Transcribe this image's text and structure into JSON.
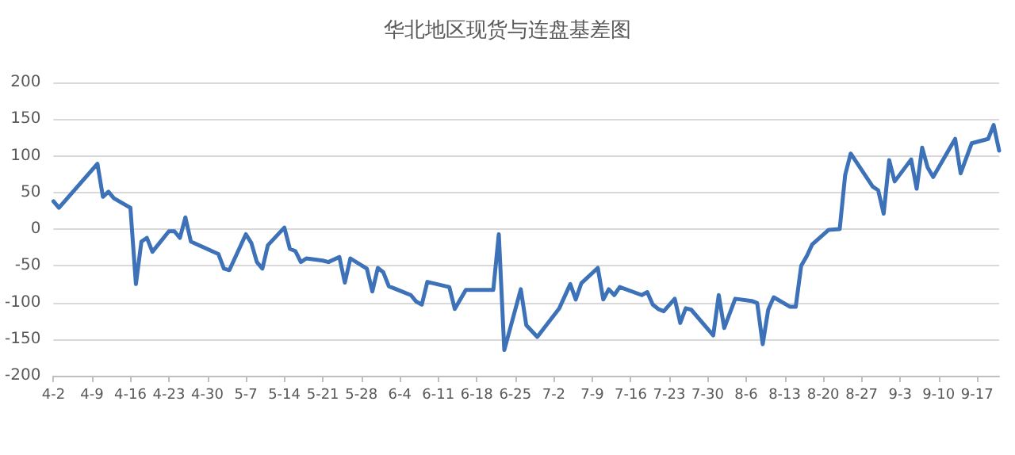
{
  "chart_data": {
    "type": "line",
    "title": "华北地区现货与连盘基差图",
    "x": [
      "--04-02",
      "--04-03",
      "--04-10",
      "--04-11",
      "--04-12",
      "--04-13",
      "--04-16",
      "--04-17",
      "--04-18",
      "--04-19",
      "--04-20",
      "--04-23",
      "--04-24",
      "--04-25",
      "--04-26",
      "--04-27",
      "--05-02",
      "--05-03",
      "--05-04",
      "--05-07",
      "--05-08",
      "--05-09",
      "--05-10",
      "--05-11",
      "--05-14",
      "--05-15",
      "--05-16",
      "--05-17",
      "--05-18",
      "--05-21",
      "--05-22",
      "--05-24",
      "--05-25",
      "--05-26",
      "--05-29",
      "--05-30",
      "--05-31",
      "--06-01",
      "--06-02",
      "--06-06",
      "--06-07",
      "--06-08",
      "--06-09",
      "--06-13",
      "--06-14",
      "--06-16",
      "--06-21",
      "--06-22",
      "--06-23",
      "--06-26",
      "--06-27",
      "--06-29",
      "--07-03",
      "--07-05",
      "--07-06",
      "--07-07",
      "--07-10",
      "--07-11",
      "--07-12",
      "--07-13",
      "--07-14",
      "--07-18",
      "--07-19",
      "--07-20",
      "--07-21",
      "--07-22",
      "--07-24",
      "--07-25",
      "--07-26",
      "--07-27",
      "--07-31",
      "--08-01",
      "--08-02",
      "--08-04",
      "--08-07",
      "--08-08",
      "--08-09",
      "--08-10",
      "--08-11",
      "--08-14",
      "--08-15",
      "--08-16",
      "--08-17",
      "--08-18",
      "--08-21",
      "--08-23",
      "--08-24",
      "--08-25",
      "--08-29",
      "--08-30",
      "--08-31",
      "--09-01",
      "--09-02",
      "--09-05",
      "--09-06",
      "--09-07",
      "--09-08",
      "--09-09",
      "--09-13",
      "--09-14",
      "--09-16",
      "--09-19",
      "--09-20",
      "--09-21"
    ],
    "series": [
      {
        "color": "#3d72b8",
        "values": [
          38,
          29,
          89,
          44,
          51,
          42,
          29,
          -75,
          -17,
          -12,
          -31,
          -3,
          -3,
          -12,
          16,
          -17,
          -34,
          -54,
          -56,
          -7,
          -19,
          -45,
          -54,
          -22,
          2,
          -27,
          -30,
          -45,
          -40,
          -43,
          -45,
          -38,
          -73,
          -40,
          -54,
          -85,
          -53,
          -59,
          -78,
          -90,
          -99,
          -103,
          -72,
          -79,
          -109,
          -83,
          -83,
          -7,
          -165,
          -82,
          -131,
          -147,
          -108,
          -75,
          -96,
          -74,
          -53,
          -96,
          -82,
          -90,
          -79,
          -90,
          -86,
          -103,
          -109,
          -112,
          -95,
          -128,
          -108,
          -110,
          -145,
          -90,
          -135,
          -95,
          -98,
          -101,
          -157,
          -110,
          -93,
          -106,
          -106,
          -50,
          -37,
          -21,
          -1,
          0,
          74,
          103,
          58,
          53,
          21,
          94,
          65,
          95,
          55,
          111,
          84,
          71,
          123,
          76,
          117,
          123,
          142,
          107
        ]
      }
    ],
    "xlim": [
      "--04-02",
      "--09-21"
    ],
    "xticks": [
      {
        "value": "--04-02",
        "label": "4-2"
      },
      {
        "value": "--04-09",
        "label": "4-9"
      },
      {
        "value": "--04-16",
        "label": "4-16"
      },
      {
        "value": "--04-23",
        "label": "4-23"
      },
      {
        "value": "--04-30",
        "label": "4-30"
      },
      {
        "value": "--05-07",
        "label": "5-7"
      },
      {
        "value": "--05-14",
        "label": "5-14"
      },
      {
        "value": "--05-21",
        "label": "5-21"
      },
      {
        "value": "--05-28",
        "label": "5-28"
      },
      {
        "value": "--06-04",
        "label": "6-4"
      },
      {
        "value": "--06-11",
        "label": "6-11"
      },
      {
        "value": "--06-18",
        "label": "6-18"
      },
      {
        "value": "--06-25",
        "label": "6-25"
      },
      {
        "value": "--07-02",
        "label": "7-2"
      },
      {
        "value": "--07-09",
        "label": "7-9"
      },
      {
        "value": "--07-16",
        "label": "7-16"
      },
      {
        "value": "--07-23",
        "label": "7-23"
      },
      {
        "value": "--07-30",
        "label": "7-30"
      },
      {
        "value": "--08-06",
        "label": "8-6"
      },
      {
        "value": "--08-13",
        "label": "8-13"
      },
      {
        "value": "--08-20",
        "label": "8-20"
      },
      {
        "value": "--08-27",
        "label": "8-27"
      },
      {
        "value": "--09-03",
        "label": "9-3"
      },
      {
        "value": "--09-10",
        "label": "9-10"
      },
      {
        "value": "--09-17",
        "label": "9-17"
      }
    ],
    "ylim": [
      -200,
      200
    ],
    "yticks": [
      -200,
      -150,
      -100,
      -50,
      0,
      50,
      100,
      150,
      200
    ],
    "grid": "y",
    "marker": "none",
    "line_style": "solid"
  }
}
